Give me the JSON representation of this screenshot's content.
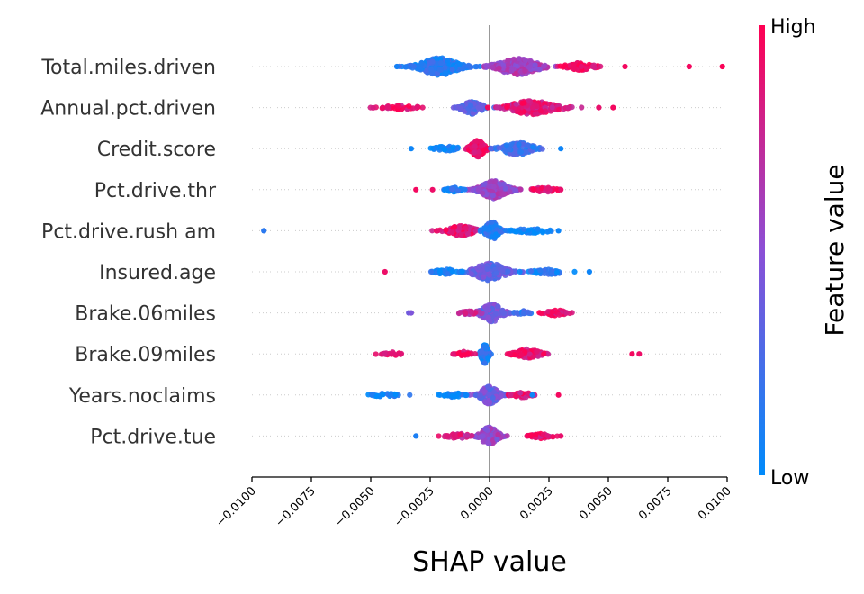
{
  "chart_data": {
    "type": "scatter",
    "subtype": "shap-beeswarm",
    "xlabel": "SHAP value",
    "xlim": [
      -0.01,
      0.01
    ],
    "xticks": [
      "−0.0100",
      "−0.0075",
      "−0.0050",
      "−0.0025",
      "0.0000",
      "0.0025",
      "0.0050",
      "0.0075",
      "0.0100"
    ],
    "xtick_values": [
      -0.01,
      -0.0075,
      -0.005,
      -0.0025,
      0,
      0.0025,
      0.005,
      0.0075,
      0.01
    ],
    "colorbar": {
      "title": "Feature value",
      "high_label": "High",
      "low_label": "Low",
      "low_color": "#008bfb",
      "high_color": "#ff0052"
    },
    "zero_line_color": "#999999",
    "features": [
      {
        "name": "Total.miles.driven",
        "clusters": [
          {
            "center": -0.0021,
            "spread": 0.0011,
            "n": 260,
            "height": 0.42,
            "value": 0.12
          },
          {
            "center": 0.0012,
            "spread": 0.0012,
            "n": 200,
            "height": 0.4,
            "value": 0.6
          },
          {
            "center": 0.0038,
            "spread": 0.0008,
            "n": 70,
            "height": 0.18,
            "value": 0.95
          }
        ],
        "outliers": [
          {
            "x": 0.0084,
            "v": 0.95
          },
          {
            "x": 0.0098,
            "v": 0.98
          },
          {
            "x": 0.0057,
            "v": 0.95
          },
          {
            "x": -0.0039,
            "v": 0.08
          }
        ]
      },
      {
        "name": "Annual.pct.driven",
        "clusters": [
          {
            "center": -0.0007,
            "spread": 0.0006,
            "n": 90,
            "height": 0.32,
            "value": 0.3
          },
          {
            "center": 0.0018,
            "spread": 0.0013,
            "n": 200,
            "height": 0.34,
            "value": 0.85
          },
          {
            "center": -0.0038,
            "spread": 0.001,
            "n": 35,
            "height": 0.12,
            "value": 0.9
          }
        ],
        "outliers": [
          {
            "x": 0.0052,
            "v": 0.95
          },
          {
            "x": 0.0046,
            "v": 0.9
          },
          {
            "x": -0.0045,
            "v": 0.92
          }
        ]
      },
      {
        "name": "Credit.score",
        "clusters": [
          {
            "center": -0.0005,
            "spread": 0.0004,
            "n": 150,
            "height": 0.4,
            "value": 0.95
          },
          {
            "center": 0.0012,
            "spread": 0.0009,
            "n": 110,
            "height": 0.3,
            "value": 0.2
          },
          {
            "center": -0.0018,
            "spread": 0.0007,
            "n": 40,
            "height": 0.12,
            "value": 0.05
          }
        ],
        "outliers": [
          {
            "x": 0.003,
            "v": 0.05
          },
          {
            "x": -0.0033,
            "v": 0.05
          }
        ]
      },
      {
        "name": "Pct.drive.thr",
        "clusters": [
          {
            "center": 0.0002,
            "spread": 0.0008,
            "n": 220,
            "height": 0.44,
            "value": 0.55
          },
          {
            "center": 0.0023,
            "spread": 0.0006,
            "n": 35,
            "height": 0.12,
            "value": 0.9
          },
          {
            "center": -0.0015,
            "spread": 0.0004,
            "n": 25,
            "height": 0.12,
            "value": 0.1
          }
        ],
        "outliers": [
          {
            "x": -0.0031,
            "v": 0.95
          },
          {
            "x": -0.0024,
            "v": 0.92
          },
          {
            "x": 0.003,
            "v": 0.9
          }
        ]
      },
      {
        "name": "Pct.drive.rush am",
        "clusters": [
          {
            "center": -0.0012,
            "spread": 0.0008,
            "n": 120,
            "height": 0.24,
            "value": 0.9
          },
          {
            "center": 0.0001,
            "spread": 0.0004,
            "n": 110,
            "height": 0.44,
            "value": 0.15
          },
          {
            "center": 0.0018,
            "spread": 0.001,
            "n": 40,
            "height": 0.12,
            "value": 0.05
          }
        ],
        "outliers": [
          {
            "x": -0.0095,
            "v": 0.15
          },
          {
            "x": -0.0022,
            "v": 0.9
          },
          {
            "x": 0.0029,
            "v": 0.05
          }
        ]
      },
      {
        "name": "Insured.age",
        "clusters": [
          {
            "center": 0.0,
            "spread": 0.0009,
            "n": 170,
            "height": 0.42,
            "value": 0.35
          },
          {
            "center": 0.0025,
            "spread": 0.0009,
            "n": 40,
            "height": 0.12,
            "value": 0.1
          },
          {
            "center": -0.0018,
            "spread": 0.0007,
            "n": 40,
            "height": 0.12,
            "value": 0.05
          }
        ],
        "outliers": [
          {
            "x": -0.0044,
            "v": 0.92
          },
          {
            "x": 0.0042,
            "v": 0.05
          }
        ]
      },
      {
        "name": "Brake.06miles",
        "clusters": [
          {
            "center": 0.0001,
            "spread": 0.0006,
            "n": 160,
            "height": 0.44,
            "value": 0.4
          },
          {
            "center": 0.0028,
            "spread": 0.0006,
            "n": 45,
            "height": 0.14,
            "value": 0.9
          },
          {
            "center": -0.0008,
            "spread": 0.0005,
            "n": 30,
            "height": 0.12,
            "value": 0.75
          },
          {
            "center": 0.0014,
            "spread": 0.0004,
            "n": 20,
            "height": 0.1,
            "value": 0.2
          }
        ],
        "outliers": [
          {
            "x": -0.0034,
            "v": 0.4
          },
          {
            "x": -0.0033,
            "v": 0.45
          }
        ]
      },
      {
        "name": "Brake.09miles",
        "clusters": [
          {
            "center": -0.0002,
            "spread": 0.0002,
            "n": 120,
            "height": 0.46,
            "value": 0.1
          },
          {
            "center": 0.0016,
            "spread": 0.0007,
            "n": 110,
            "height": 0.24,
            "value": 0.9
          },
          {
            "center": -0.0011,
            "spread": 0.0004,
            "n": 25,
            "height": 0.12,
            "value": 0.95
          },
          {
            "center": -0.0042,
            "spread": 0.0005,
            "n": 22,
            "height": 0.12,
            "value": 0.95
          }
        ],
        "outliers": [
          {
            "x": 0.006,
            "v": 0.95
          },
          {
            "x": 0.0063,
            "v": 0.92
          }
        ]
      },
      {
        "name": "Years.noclaims",
        "clusters": [
          {
            "center": 0.0,
            "spread": 0.0005,
            "n": 140,
            "height": 0.44,
            "value": 0.4
          },
          {
            "center": 0.0014,
            "spread": 0.0006,
            "n": 40,
            "height": 0.12,
            "value": 0.85
          },
          {
            "center": -0.0044,
            "spread": 0.0007,
            "n": 30,
            "height": 0.1,
            "value": 0.05
          },
          {
            "center": -0.0015,
            "spread": 0.0006,
            "n": 30,
            "height": 0.1,
            "value": 0.05
          }
        ],
        "outliers": [
          {
            "x": 0.0029,
            "v": 0.95
          },
          {
            "x": 0.0018,
            "v": 0.05
          }
        ]
      },
      {
        "name": "Pct.drive.tue",
        "clusters": [
          {
            "center": 0.0,
            "spread": 0.0005,
            "n": 140,
            "height": 0.44,
            "value": 0.55
          },
          {
            "center": 0.0022,
            "spread": 0.0006,
            "n": 40,
            "height": 0.12,
            "value": 0.85
          },
          {
            "center": -0.0013,
            "spread": 0.0007,
            "n": 40,
            "height": 0.12,
            "value": 0.8
          }
        ],
        "outliers": [
          {
            "x": -0.0031,
            "v": 0.1
          },
          {
            "x": 0.003,
            "v": 0.9
          }
        ]
      }
    ]
  }
}
